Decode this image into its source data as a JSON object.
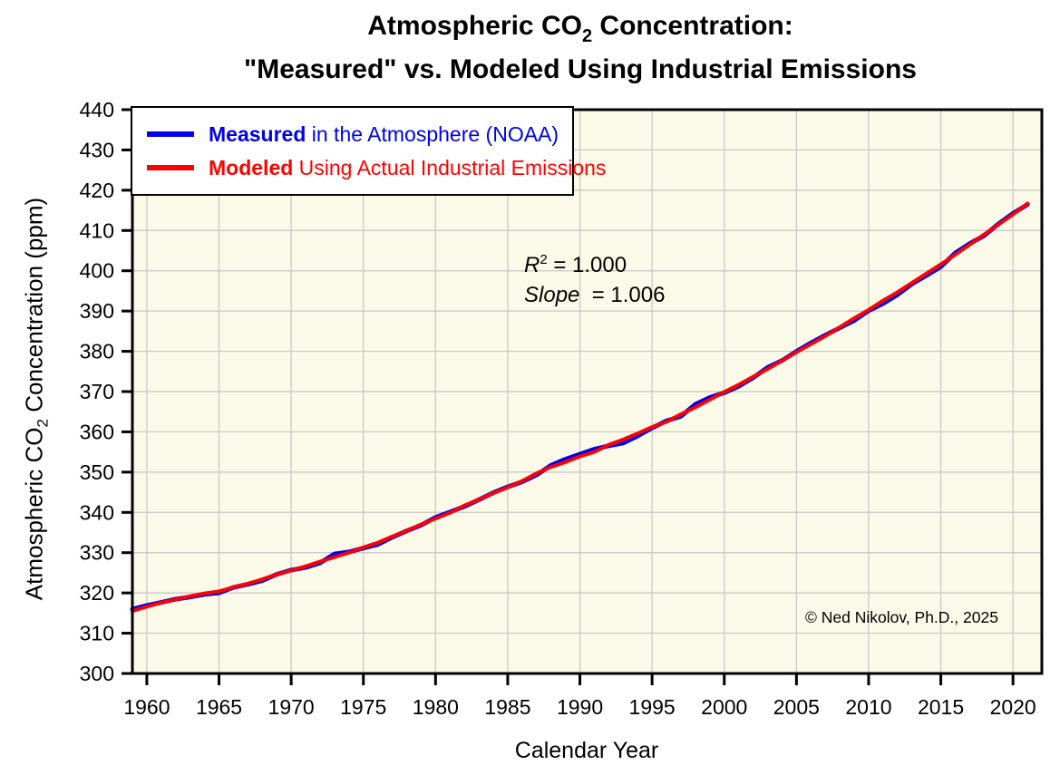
{
  "title": {
    "line1_pre": "Atmospheric CO",
    "line1_sub": "2",
    "line1_post": " Concentration:",
    "line2": "\"Measured\" vs. Modeled Using Industrial Emissions"
  },
  "axes": {
    "y_title_pre": "Atmospheric CO",
    "y_title_sub": "2",
    "y_title_post": " Concentration (ppm)",
    "x_title": "Calendar Year"
  },
  "legend": {
    "items": [
      {
        "bold": "Measured",
        "rest": " in the Atmosphere (NOAA)",
        "color": "#0000EE"
      },
      {
        "bold": "Modeled",
        "rest": " Using Actual Industrial Emissions",
        "color": "#FF0000"
      }
    ]
  },
  "annotations": {
    "r2_var": "R",
    "r2_sup": "2",
    "r2_rest": " = 1.000",
    "slope_var": "Slope",
    "slope_rest": "  = 1.006",
    "copyright": "© Ned Nikolov, Ph.D., 2025"
  },
  "chart_data": {
    "type": "line",
    "title": "Atmospheric CO2 Concentration: \"Measured\" vs. Modeled Using Industrial Emissions",
    "xlabel": "Calendar Year",
    "ylabel": "Atmospheric CO2 Concentration (ppm)",
    "xlim": [
      1959,
      2022
    ],
    "ylim": [
      300,
      440
    ],
    "x_ticks": [
      1960,
      1965,
      1970,
      1975,
      1980,
      1985,
      1990,
      1995,
      2000,
      2005,
      2010,
      2015,
      2020
    ],
    "y_ticks": [
      300,
      310,
      320,
      330,
      340,
      350,
      360,
      370,
      380,
      390,
      400,
      410,
      420,
      430,
      440
    ],
    "grid": true,
    "legend_position": "top-left",
    "plot_bg": "#FBFAE8",
    "grid_color": "#C6C6C6",
    "frame_color": "#000000",
    "stats": {
      "r_squared": 1.0,
      "slope": 1.006
    },
    "x": [
      1959,
      1960,
      1961,
      1962,
      1963,
      1964,
      1965,
      1966,
      1967,
      1968,
      1969,
      1970,
      1971,
      1972,
      1973,
      1974,
      1975,
      1976,
      1977,
      1978,
      1979,
      1980,
      1981,
      1982,
      1983,
      1984,
      1985,
      1986,
      1987,
      1988,
      1989,
      1990,
      1991,
      1992,
      1993,
      1994,
      1995,
      1996,
      1997,
      1998,
      1999,
      2000,
      2001,
      2002,
      2003,
      2004,
      2005,
      2006,
      2007,
      2008,
      2009,
      2010,
      2011,
      2012,
      2013,
      2014,
      2015,
      2016,
      2017,
      2018,
      2019,
      2020,
      2021
    ],
    "series": [
      {
        "name": "Measured in the Atmosphere (NOAA)",
        "color": "#0000EE",
        "width": 5,
        "values": [
          315.98,
          316.91,
          317.64,
          318.45,
          318.99,
          319.62,
          320.04,
          321.37,
          322.18,
          323.05,
          324.62,
          325.68,
          326.32,
          327.46,
          329.68,
          330.19,
          331.12,
          332.03,
          333.84,
          335.41,
          336.84,
          338.76,
          340.12,
          341.48,
          343.15,
          344.87,
          346.35,
          347.61,
          349.31,
          351.69,
          353.2,
          354.45,
          355.7,
          356.54,
          357.21,
          358.96,
          360.97,
          362.74,
          363.88,
          366.84,
          368.54,
          369.71,
          371.32,
          373.45,
          375.98,
          377.7,
          379.98,
          382.09,
          384.02,
          385.83,
          387.64,
          390.1,
          391.85,
          394.06,
          396.74,
          398.81,
          401.01,
          404.41,
          406.76,
          408.72,
          411.66,
          414.24,
          416.45
        ]
      },
      {
        "name": "Modeled Using Actual Industrial Emissions",
        "color": "#FF0000",
        "width": 4,
        "values": [
          315.5,
          316.6,
          317.6,
          318.4,
          319.2,
          319.9,
          320.4,
          321.4,
          322.3,
          323.4,
          324.6,
          325.6,
          326.6,
          327.8,
          328.9,
          330.0,
          331.3,
          332.5,
          334.0,
          335.4,
          337.0,
          338.5,
          339.9,
          341.7,
          343.2,
          344.8,
          346.2,
          347.8,
          349.7,
          351.3,
          352.5,
          353.9,
          355.0,
          356.8,
          358.1,
          359.6,
          361.2,
          362.5,
          364.4,
          366.1,
          368.0,
          369.9,
          371.7,
          373.7,
          375.6,
          377.7,
          379.8,
          381.8,
          383.8,
          386.0,
          388.2,
          390.3,
          392.6,
          394.7,
          397.0,
          399.3,
          401.6,
          404.0,
          406.5,
          409.0,
          411.5,
          414.0,
          416.7
        ]
      }
    ]
  }
}
